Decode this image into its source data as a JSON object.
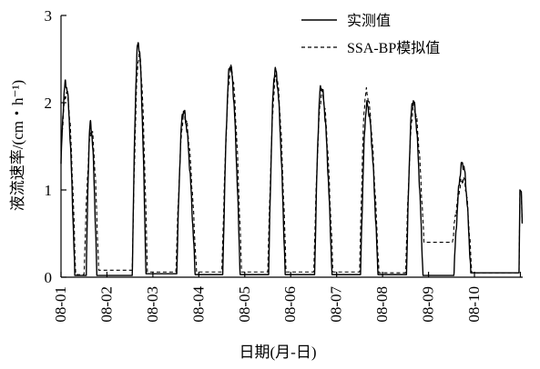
{
  "chart_data": {
    "type": "line",
    "xlabel": "日期(月-日)",
    "ylabel": "液流速率/(cm・h⁻¹)",
    "x_categories": [
      "08-01",
      "08-02",
      "08-03",
      "08-04",
      "08-05",
      "08-06",
      "08-07",
      "08-08",
      "08-09",
      "08-10"
    ],
    "x_range": [
      0,
      10.05
    ],
    "ylim": [
      0,
      3
    ],
    "y_ticks": [
      0,
      1,
      2,
      3
    ],
    "y_tick_labels": [
      "0",
      "1",
      "2",
      "3"
    ],
    "legend_position": "top-right",
    "grid": false,
    "series": [
      {
        "name": "实测值",
        "style": "solid",
        "color": "#000000",
        "daily": [
          {
            "start": 0.0,
            "peak": 0.1,
            "end": 0.3,
            "max": 2.22,
            "base": 1.3,
            "night": 0.02
          },
          {
            "start": 0.55,
            "peak": 0.64,
            "end": 0.78,
            "max": 1.75,
            "base": 0.02,
            "night": 0.02
          },
          {
            "start": 1.55,
            "peak": 1.68,
            "end": 1.85,
            "max": 2.68,
            "base": 0.02,
            "night": 0.04
          },
          {
            "start": 2.52,
            "peak": 2.66,
            "end": 2.92,
            "max": 1.9,
            "base": 0.04,
            "night": 0.03
          },
          {
            "start": 3.52,
            "peak": 3.68,
            "end": 3.9,
            "max": 2.42,
            "base": 0.03,
            "night": 0.03
          },
          {
            "start": 4.52,
            "peak": 4.66,
            "end": 4.88,
            "max": 2.37,
            "base": 0.03,
            "night": 0.03
          },
          {
            "start": 5.52,
            "peak": 5.66,
            "end": 5.9,
            "max": 2.18,
            "base": 0.03,
            "night": 0.03
          },
          {
            "start": 6.52,
            "peak": 6.66,
            "end": 6.9,
            "max": 1.97,
            "base": 0.03,
            "night": 0.03
          },
          {
            "start": 7.52,
            "peak": 7.66,
            "end": 7.88,
            "max": 2.02,
            "base": 0.03,
            "night": 0.02
          },
          {
            "start": 8.55,
            "peak": 8.74,
            "end": 8.92,
            "max": 1.3,
            "base": 0.02,
            "night": 0.05
          }
        ],
        "tail": [
          [
            9.97,
            0.05
          ],
          [
            9.99,
            1.0
          ],
          [
            10.02,
            0.98
          ],
          [
            10.04,
            0.62
          ]
        ]
      },
      {
        "name": "SSA-BP模拟值",
        "style": "dashed",
        "color": "#000000",
        "daily": [
          {
            "start": 0.0,
            "peak": 0.12,
            "end": 0.32,
            "max": 2.12,
            "base": 1.45,
            "night": 0.03
          },
          {
            "start": 0.5,
            "peak": 0.66,
            "end": 0.82,
            "max": 1.68,
            "base": 0.03,
            "night": 0.08
          },
          {
            "start": 1.55,
            "peak": 1.7,
            "end": 1.88,
            "max": 2.55,
            "base": 0.08,
            "night": 0.06
          },
          {
            "start": 2.5,
            "peak": 2.68,
            "end": 2.95,
            "max": 1.86,
            "base": 0.06,
            "night": 0.06
          },
          {
            "start": 3.5,
            "peak": 3.7,
            "end": 3.93,
            "max": 2.38,
            "base": 0.06,
            "night": 0.06
          },
          {
            "start": 4.5,
            "peak": 4.68,
            "end": 4.9,
            "max": 2.3,
            "base": 0.06,
            "night": 0.06
          },
          {
            "start": 5.5,
            "peak": 5.68,
            "end": 5.92,
            "max": 2.1,
            "base": 0.06,
            "night": 0.06
          },
          {
            "start": 6.5,
            "peak": 6.64,
            "end": 6.92,
            "max": 2.12,
            "base": 0.06,
            "night": 0.05
          },
          {
            "start": 7.5,
            "peak": 7.68,
            "end": 7.9,
            "max": 1.95,
            "base": 0.05,
            "night": 0.4
          },
          {
            "start": 8.52,
            "peak": 8.76,
            "end": 8.94,
            "max": 1.12,
            "base": 0.4,
            "night": 0.05
          }
        ],
        "tail": [
          [
            9.97,
            0.05
          ],
          [
            9.99,
            0.98
          ],
          [
            10.02,
            0.95
          ],
          [
            10.04,
            0.6
          ]
        ]
      }
    ]
  }
}
